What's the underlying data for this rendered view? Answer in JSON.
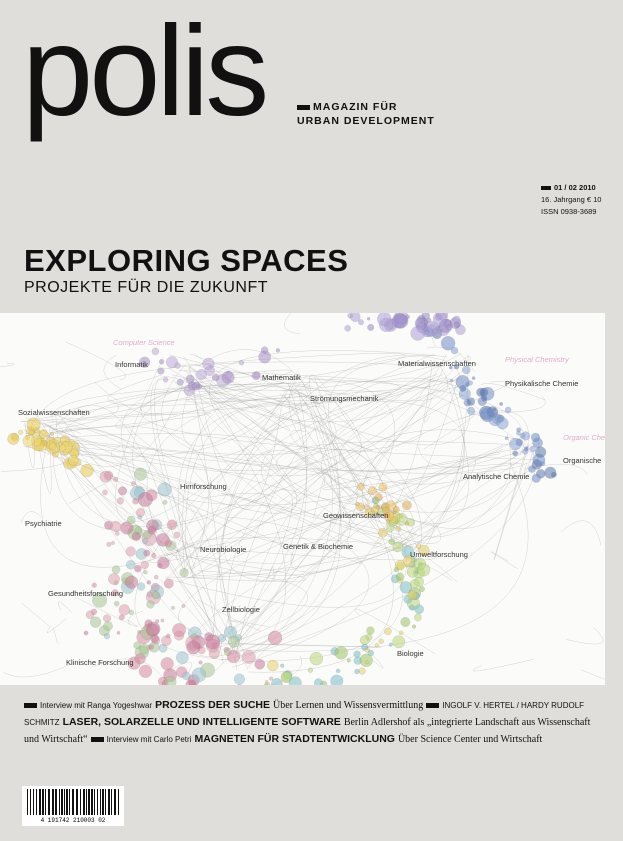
{
  "masthead": {
    "title": "polis",
    "tagline": [
      "MAGAZIN FÜR",
      "URBAN DEVELOPMENT"
    ]
  },
  "issue": {
    "number": "01 / 02 2010",
    "price": "16. Jahrgang € 10",
    "issn": "ISSN 0938-3689"
  },
  "headline": {
    "title": "EXPLORING SPACES",
    "subtitle": "PROJEKTE FÜR DIE ZUKUNFT"
  },
  "map": {
    "labels": [
      "Computer Science",
      "Informatik",
      "Mathematik",
      "Materialwissenschaften",
      "Physical Chemistry",
      "Physikalische Chemie",
      "Sozialwissenschaften",
      "Strömungsmechanik",
      "Organic Chemistry",
      "Organische",
      "Analytische Chemie",
      "Hirnforschung",
      "Psychiatrie",
      "Geowissenschaften",
      "Neurobiologie",
      "Genetik & Biochemie",
      "Umweltforschung",
      "Gesundheitsforschung",
      "Zellbiologie",
      "Biologie",
      "Klinische Forschung"
    ]
  },
  "teasers": [
    {
      "prefix": "Interview mit Ranga Yogeshwar",
      "title": "PROZESS DER SUCHE",
      "text": "Über Lernen und Wissensvermittlung"
    },
    {
      "prefix": "INGOLF V. HERTEL / HARDY RUDOLF SCHMITZ",
      "title": "LASER, SOLARZELLE UND INTELLIGENTE SOFTWARE",
      "text": "Berlin Adlershof als „integrierte Landschaft aus Wissenschaft und Wirtschaft“"
    },
    {
      "prefix": "Interview mit Carlo Petri",
      "title": "MAGNETEN FÜR STADTENTWICKLUNG",
      "text": "Über Science Center und Wirtschaft"
    }
  ],
  "barcode": {
    "digits": "4 191742 210003 02"
  }
}
